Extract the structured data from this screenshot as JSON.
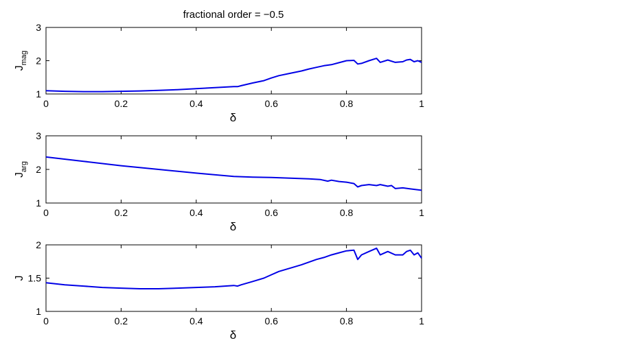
{
  "figure_title": "fractional order = −0.5",
  "chart_data": [
    {
      "type": "line",
      "xlabel": "δ",
      "ylabel": "J",
      "ylabel_sub": "mag",
      "xlim": [
        0,
        1
      ],
      "ylim": [
        1,
        3
      ],
      "xticks": [
        "0",
        "0.2",
        "0.4",
        "0.6",
        "0.8",
        "1"
      ],
      "yticks": [
        "1",
        "2",
        "3"
      ],
      "color": "#0000e6",
      "x": [
        0,
        0.05,
        0.1,
        0.15,
        0.2,
        0.25,
        0.3,
        0.35,
        0.4,
        0.45,
        0.5,
        0.51,
        0.52,
        0.55,
        0.58,
        0.6,
        0.62,
        0.65,
        0.68,
        0.7,
        0.72,
        0.74,
        0.76,
        0.78,
        0.8,
        0.82,
        0.83,
        0.84,
        0.86,
        0.88,
        0.89,
        0.91,
        0.93,
        0.95,
        0.96,
        0.97,
        0.98,
        0.99,
        1.0
      ],
      "values": [
        1.1,
        1.08,
        1.07,
        1.07,
        1.08,
        1.09,
        1.11,
        1.13,
        1.16,
        1.19,
        1.22,
        1.22,
        1.25,
        1.33,
        1.4,
        1.48,
        1.55,
        1.62,
        1.69,
        1.75,
        1.8,
        1.85,
        1.88,
        1.94,
        2.0,
        2.01,
        1.9,
        1.92,
        2.0,
        2.07,
        1.95,
        2.02,
        1.95,
        1.97,
        2.02,
        2.04,
        1.97,
        2.0,
        1.95
      ]
    },
    {
      "type": "line",
      "xlabel": "δ",
      "ylabel": "J",
      "ylabel_sub": "arg",
      "xlim": [
        0,
        1
      ],
      "ylim": [
        1,
        3
      ],
      "xticks": [
        "0",
        "0.2",
        "0.4",
        "0.6",
        "0.8",
        "1"
      ],
      "yticks": [
        "1",
        "2",
        "3"
      ],
      "color": "#0000e6",
      "x": [
        0,
        0.1,
        0.2,
        0.3,
        0.4,
        0.5,
        0.55,
        0.6,
        0.65,
        0.7,
        0.73,
        0.75,
        0.76,
        0.78,
        0.8,
        0.82,
        0.83,
        0.84,
        0.86,
        0.88,
        0.89,
        0.91,
        0.92,
        0.93,
        0.95,
        0.97,
        1.0
      ],
      "values": [
        2.37,
        2.24,
        2.11,
        2.0,
        1.89,
        1.79,
        1.77,
        1.76,
        1.74,
        1.72,
        1.7,
        1.65,
        1.68,
        1.64,
        1.62,
        1.58,
        1.48,
        1.52,
        1.55,
        1.52,
        1.55,
        1.5,
        1.52,
        1.43,
        1.45,
        1.42,
        1.38
      ]
    },
    {
      "type": "line",
      "xlabel": "δ",
      "ylabel": "J",
      "ylabel_sub": "",
      "xlim": [
        0,
        1
      ],
      "ylim": [
        1,
        2
      ],
      "xticks": [
        "0",
        "0.2",
        "0.4",
        "0.6",
        "0.8",
        "1"
      ],
      "yticks": [
        "1",
        "1.5",
        "2"
      ],
      "color": "#0000e6",
      "x": [
        0,
        0.05,
        0.1,
        0.15,
        0.2,
        0.25,
        0.28,
        0.3,
        0.35,
        0.4,
        0.45,
        0.5,
        0.51,
        0.52,
        0.55,
        0.58,
        0.6,
        0.62,
        0.65,
        0.68,
        0.7,
        0.72,
        0.74,
        0.76,
        0.78,
        0.8,
        0.82,
        0.83,
        0.84,
        0.86,
        0.88,
        0.89,
        0.91,
        0.93,
        0.95,
        0.96,
        0.97,
        0.98,
        0.99,
        1.0
      ],
      "values": [
        1.43,
        1.4,
        1.38,
        1.36,
        1.35,
        1.34,
        1.34,
        1.34,
        1.35,
        1.36,
        1.37,
        1.39,
        1.38,
        1.4,
        1.45,
        1.5,
        1.55,
        1.6,
        1.65,
        1.7,
        1.74,
        1.78,
        1.81,
        1.85,
        1.88,
        1.91,
        1.92,
        1.78,
        1.85,
        1.9,
        1.95,
        1.85,
        1.9,
        1.85,
        1.85,
        1.9,
        1.92,
        1.85,
        1.88,
        1.8
      ]
    }
  ]
}
